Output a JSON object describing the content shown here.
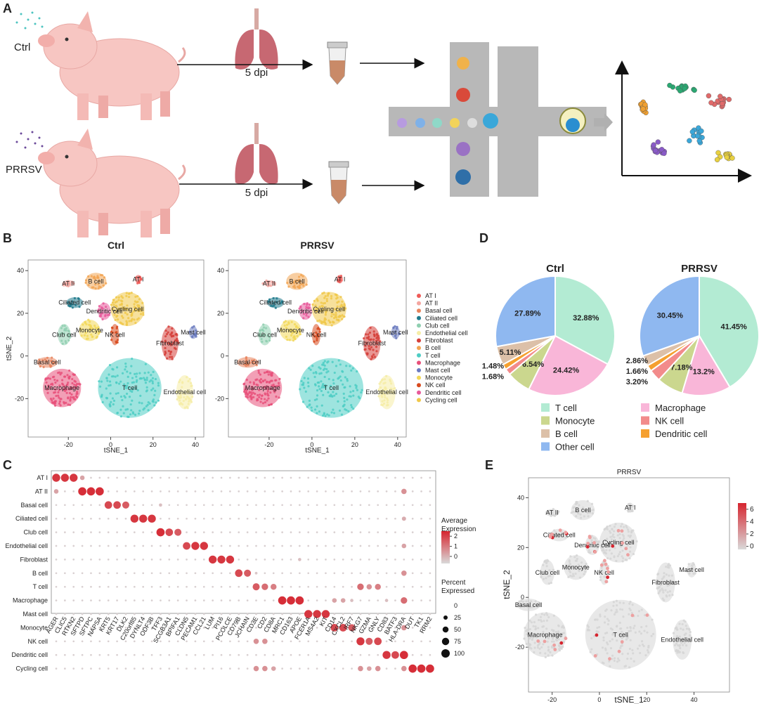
{
  "panel_a": {
    "label": "A",
    "groups": [
      "Ctrl",
      "PRRSV"
    ],
    "timepoint": "5 dpi"
  },
  "cell_types": [
    "AT I",
    "AT II",
    "Basal cell",
    "Ciliated cell",
    "Club cell",
    "Endothelial cell",
    "Fibroblast",
    "B cell",
    "T cell",
    "Macrophage",
    "Mast cell",
    "Monocyte",
    "NK cell",
    "Dendritic cell",
    "Cycling cell"
  ],
  "cell_colors": [
    "#ef5b57",
    "#f4a6a0",
    "#e8845c",
    "#1f7a8c",
    "#8fcfb0",
    "#f6eda6",
    "#d6403a",
    "#f2a553",
    "#4ecdc4",
    "#e8507a",
    "#6b7bc0",
    "#f2d85a",
    "#d84a1e",
    "#e85a9a",
    "#f0c84a"
  ],
  "panel_b": {
    "label": "B",
    "plots": [
      {
        "title": "Ctrl"
      },
      {
        "title": "PRRSV"
      }
    ],
    "xlabel": "tSNE_1",
    "ylabel": "tSNE_2",
    "xlim": [
      -39,
      44
    ],
    "ylim": [
      -38,
      45
    ],
    "xticks": [
      -20,
      0,
      20,
      40
    ],
    "yticks": [
      -20,
      0,
      20,
      40
    ]
  },
  "panel_c": {
    "label": "C",
    "genes": [
      "AGER",
      "CLIC5",
      "RTKN2",
      "SFTPD",
      "SFTPC",
      "NAPSA",
      "KRT5",
      "KRT17",
      "DLK2",
      "C20orf85",
      "DYNLT4",
      "ODF3B",
      "TFF3",
      "SCGB3A1",
      "BPIFA1",
      "CLDN5",
      "PECAM1",
      "CCL21",
      "LUM",
      "PI16",
      "PCOLCE",
      "CD79B",
      "JCHAIN",
      "CD3E",
      "CD2",
      "CD8A",
      "MRC1",
      "CD163",
      "APOE",
      "FCER1A",
      "MS4A2",
      "KIT",
      "CD14",
      "CXCL2",
      "IRF7",
      "NKG7",
      "GZMA",
      "GNLY",
      "CD83",
      "BATF3",
      "HLA-DRA",
      "DUT",
      "TK1",
      "RRM2"
    ],
    "percent": [
      [
        90,
        90,
        90,
        30,
        5,
        5,
        5,
        5,
        5,
        5,
        5,
        5,
        5,
        5,
        5,
        5,
        5,
        5,
        5,
        5,
        5,
        5,
        5,
        5,
        5,
        5,
        5,
        5,
        5,
        5,
        5,
        5,
        5,
        5,
        5,
        5,
        5,
        5,
        5,
        5,
        5,
        5,
        5,
        5
      ],
      [
        30,
        5,
        5,
        95,
        95,
        95,
        5,
        5,
        5,
        5,
        5,
        5,
        5,
        5,
        5,
        5,
        5,
        5,
        5,
        5,
        5,
        5,
        5,
        5,
        5,
        5,
        5,
        5,
        5,
        5,
        5,
        5,
        5,
        5,
        5,
        5,
        5,
        5,
        5,
        5,
        40,
        5,
        5,
        5
      ],
      [
        5,
        5,
        5,
        5,
        5,
        5,
        80,
        80,
        70,
        5,
        5,
        5,
        15,
        5,
        5,
        5,
        5,
        5,
        5,
        5,
        5,
        5,
        5,
        5,
        5,
        5,
        5,
        5,
        5,
        5,
        5,
        5,
        5,
        5,
        5,
        5,
        5,
        5,
        5,
        5,
        5,
        5,
        5,
        5
      ],
      [
        5,
        5,
        5,
        5,
        5,
        5,
        5,
        5,
        5,
        90,
        90,
        90,
        5,
        5,
        5,
        5,
        5,
        5,
        5,
        5,
        5,
        5,
        5,
        5,
        5,
        5,
        5,
        5,
        5,
        5,
        5,
        5,
        5,
        5,
        5,
        5,
        5,
        5,
        5,
        5,
        25,
        5,
        5,
        5
      ],
      [
        5,
        5,
        5,
        5,
        5,
        5,
        5,
        5,
        5,
        5,
        5,
        5,
        95,
        80,
        70,
        5,
        5,
        5,
        5,
        5,
        5,
        5,
        5,
        5,
        5,
        5,
        5,
        5,
        5,
        5,
        5,
        5,
        5,
        5,
        5,
        5,
        5,
        5,
        5,
        5,
        5,
        5,
        5,
        5
      ],
      [
        5,
        5,
        5,
        5,
        5,
        5,
        5,
        5,
        5,
        5,
        5,
        5,
        5,
        5,
        5,
        80,
        90,
        90,
        5,
        5,
        5,
        5,
        5,
        5,
        5,
        5,
        5,
        5,
        5,
        5,
        5,
        5,
        5,
        5,
        5,
        5,
        5,
        5,
        5,
        5,
        30,
        5,
        5,
        5
      ],
      [
        5,
        5,
        5,
        5,
        5,
        5,
        5,
        5,
        5,
        5,
        5,
        5,
        5,
        5,
        5,
        5,
        5,
        5,
        90,
        90,
        90,
        5,
        5,
        5,
        5,
        5,
        5,
        5,
        15,
        5,
        5,
        5,
        5,
        5,
        5,
        5,
        5,
        5,
        5,
        5,
        5,
        5,
        5,
        5
      ],
      [
        5,
        5,
        5,
        5,
        5,
        5,
        5,
        5,
        5,
        5,
        5,
        5,
        5,
        5,
        5,
        5,
        5,
        5,
        5,
        5,
        5,
        80,
        70,
        10,
        5,
        5,
        5,
        5,
        5,
        5,
        5,
        5,
        5,
        5,
        5,
        5,
        5,
        5,
        5,
        5,
        40,
        5,
        5,
        5
      ],
      [
        5,
        5,
        5,
        5,
        5,
        5,
        5,
        5,
        5,
        5,
        5,
        5,
        5,
        5,
        5,
        5,
        5,
        5,
        5,
        5,
        5,
        5,
        5,
        70,
        60,
        50,
        5,
        5,
        5,
        5,
        5,
        5,
        5,
        5,
        5,
        60,
        40,
        50,
        5,
        5,
        5,
        5,
        5,
        5
      ],
      [
        5,
        5,
        5,
        5,
        5,
        5,
        5,
        5,
        5,
        5,
        5,
        5,
        5,
        5,
        5,
        5,
        5,
        5,
        5,
        5,
        5,
        5,
        5,
        5,
        5,
        5,
        95,
        95,
        95,
        5,
        5,
        5,
        30,
        30,
        15,
        5,
        5,
        5,
        15,
        5,
        60,
        5,
        5,
        5
      ],
      [
        5,
        5,
        5,
        5,
        5,
        5,
        5,
        5,
        5,
        5,
        5,
        5,
        5,
        5,
        5,
        5,
        5,
        5,
        5,
        5,
        5,
        5,
        5,
        5,
        5,
        5,
        5,
        5,
        5,
        90,
        90,
        90,
        5,
        5,
        5,
        5,
        5,
        5,
        5,
        5,
        5,
        5,
        5,
        5
      ],
      [
        5,
        5,
        5,
        5,
        5,
        5,
        5,
        5,
        5,
        5,
        5,
        5,
        5,
        5,
        5,
        5,
        5,
        5,
        5,
        5,
        5,
        5,
        5,
        5,
        5,
        5,
        5,
        5,
        5,
        5,
        5,
        5,
        80,
        80,
        70,
        5,
        5,
        5,
        5,
        5,
        40,
        5,
        5,
        5
      ],
      [
        5,
        5,
        5,
        5,
        5,
        5,
        5,
        5,
        5,
        5,
        5,
        5,
        5,
        5,
        5,
        5,
        5,
        5,
        5,
        5,
        5,
        5,
        5,
        40,
        40,
        5,
        5,
        5,
        5,
        5,
        5,
        5,
        5,
        5,
        5,
        90,
        70,
        80,
        5,
        5,
        5,
        5,
        5,
        5
      ],
      [
        5,
        5,
        5,
        5,
        5,
        5,
        5,
        5,
        5,
        5,
        5,
        5,
        5,
        5,
        5,
        5,
        5,
        5,
        5,
        5,
        5,
        5,
        5,
        5,
        5,
        5,
        5,
        5,
        5,
        5,
        5,
        5,
        5,
        5,
        5,
        5,
        5,
        5,
        90,
        80,
        95,
        5,
        5,
        5
      ],
      [
        5,
        5,
        5,
        5,
        5,
        5,
        5,
        5,
        5,
        5,
        5,
        5,
        5,
        5,
        5,
        5,
        5,
        5,
        5,
        5,
        5,
        5,
        5,
        40,
        40,
        30,
        5,
        5,
        5,
        5,
        5,
        5,
        5,
        5,
        5,
        40,
        30,
        40,
        5,
        5,
        40,
        95,
        95,
        95
      ]
    ],
    "expression_title": [
      "Average",
      "Expression"
    ],
    "expression_lim": [
      -0.7,
      2.5
    ],
    "expression_ticks": [
      2,
      1,
      0
    ],
    "percent_title": [
      "Percent",
      "Expressed"
    ],
    "percent_ticks": [
      0,
      25,
      50,
      75,
      100
    ]
  },
  "panel_d": {
    "label": "D",
    "categories": [
      "T cell",
      "Macrophage",
      "Monocyte",
      "NK cell",
      "Dendritic cell",
      "B cell",
      "Other cell"
    ],
    "colors": [
      "#b3ebd3",
      "#f9b6d8",
      "#cbd78e",
      "#f28b8b",
      "#f5a030",
      "#dcc0a8",
      "#8fb8f0"
    ],
    "pies": [
      {
        "title": "Ctrl",
        "values": [
          32.88,
          24.42,
          6.54,
          1.68,
          1.48,
          5.11,
          27.89
        ],
        "value_labels": [
          "32.88%",
          "24.42%",
          "6.54%",
          "1.68%",
          "1.48%",
          "5.11%",
          "27.89%"
        ]
      },
      {
        "title": "PRRSV",
        "values": [
          41.45,
          13.2,
          7.18,
          3.2,
          1.66,
          2.86,
          30.45
        ],
        "value_labels": [
          "41.45%",
          "13.2%",
          "7.18%",
          "3.20%",
          "1.66%",
          "2.86%",
          "30.45%"
        ]
      }
    ]
  },
  "panel_e": {
    "label": "E",
    "title": "PRRSV",
    "xlabel": "tSNE_1",
    "ylabel": "tSNE_2",
    "xlim": [
      -30,
      55
    ],
    "ylim": [
      -38,
      48
    ],
    "xticks": [
      -20,
      0,
      20,
      40
    ],
    "yticks": [
      -20,
      0,
      20,
      40
    ],
    "colorbar_lim": [
      -0.5,
      7
    ],
    "colorbar_ticks": [
      0,
      2,
      4,
      6
    ]
  }
}
